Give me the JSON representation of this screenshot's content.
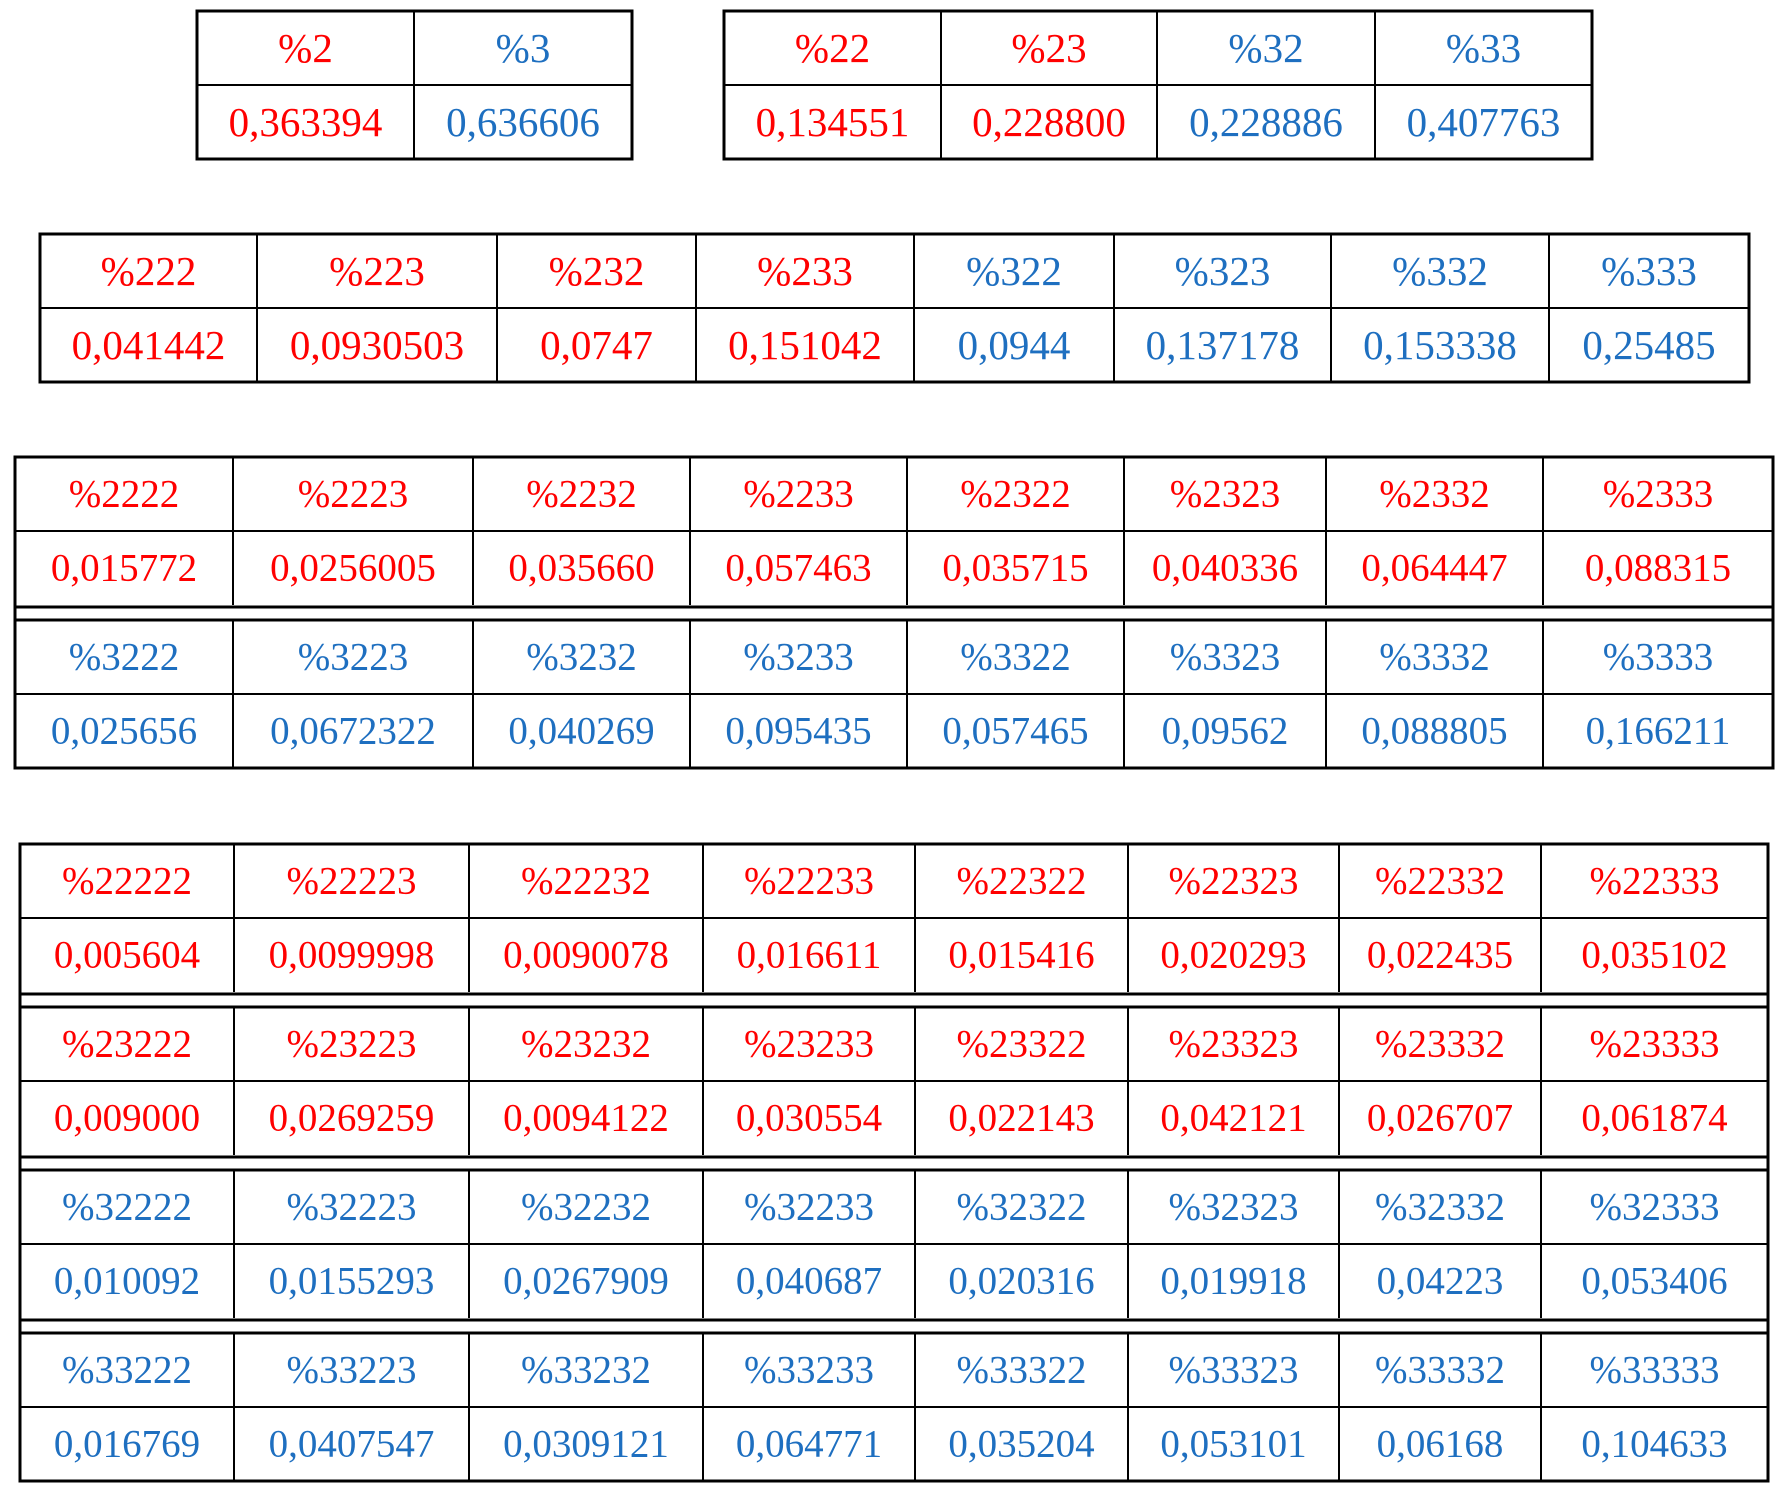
{
  "tables": [
    {
      "blocks": [
        {
          "labels": [
            "%2",
            "%3"
          ],
          "values": [
            "0,363394",
            "0,636606"
          ],
          "colors": [
            "#ff0000",
            "#1e6fc0"
          ]
        }
      ]
    },
    {
      "blocks": [
        {
          "labels": [
            "%22",
            "%23",
            "%32",
            "%33"
          ],
          "values": [
            "0,134551",
            "0,228800",
            "0,228886",
            "0,407763"
          ],
          "colors": [
            "#ff0000",
            "#ff0000",
            "#1e6fc0",
            "#1e6fc0"
          ]
        }
      ]
    },
    {
      "blocks": [
        {
          "labels": [
            "%222",
            "%223",
            "%232",
            "%233",
            "%322",
            "%323",
            "%332",
            "%333"
          ],
          "values": [
            "0,041442",
            "0,0930503",
            "0,0747",
            "0,151042",
            "0,0944",
            "0,137178",
            "0,153338",
            "0,25485"
          ],
          "colors": [
            "#ff0000",
            "#ff0000",
            "#ff0000",
            "#ff0000",
            "#1e6fc0",
            "#1e6fc0",
            "#1e6fc0",
            "#1e6fc0"
          ]
        }
      ]
    },
    {
      "blocks": [
        {
          "labels": [
            "%2222",
            "%2223",
            "%2232",
            "%2233",
            "%2322",
            "%2323",
            "%2332",
            "%2333"
          ],
          "values": [
            "0,015772",
            "0,0256005",
            "0,035660",
            "0,057463",
            "0,035715",
            "0,040336",
            "0,064447",
            "0,088315"
          ],
          "colors": [
            "#ff0000",
            "#ff0000",
            "#ff0000",
            "#ff0000",
            "#ff0000",
            "#ff0000",
            "#ff0000",
            "#ff0000"
          ]
        },
        {
          "labels": [
            "%3222",
            "%3223",
            "%3232",
            "%3233",
            "%3322",
            "%3323",
            "%3332",
            "%3333"
          ],
          "values": [
            "0,025656",
            "0,0672322",
            "0,040269",
            "0,095435",
            "0,057465",
            "0,09562",
            "0,088805",
            "0,166211"
          ],
          "colors": [
            "#1e6fc0",
            "#1e6fc0",
            "#1e6fc0",
            "#1e6fc0",
            "#1e6fc0",
            "#1e6fc0",
            "#1e6fc0",
            "#1e6fc0"
          ]
        }
      ]
    },
    {
      "blocks": [
        {
          "labels": [
            "%22222",
            "%22223",
            "%22232",
            "%22233",
            "%22322",
            "%22323",
            "%22332",
            "%22333"
          ],
          "values": [
            "0,005604",
            "0,0099998",
            "0,0090078",
            "0,016611",
            "0,015416",
            "0,020293",
            "0,022435",
            "0,035102"
          ],
          "colors": [
            "#ff0000",
            "#ff0000",
            "#ff0000",
            "#ff0000",
            "#ff0000",
            "#ff0000",
            "#ff0000",
            "#ff0000"
          ]
        },
        {
          "labels": [
            "%23222",
            "%23223",
            "%23232",
            "%23233",
            "%23322",
            "%23323",
            "%23332",
            "%23333"
          ],
          "values": [
            "0,009000",
            "0,0269259",
            "0,0094122",
            "0,030554",
            "0,022143",
            "0,042121",
            "0,026707",
            "0,061874"
          ],
          "colors": [
            "#ff0000",
            "#ff0000",
            "#ff0000",
            "#ff0000",
            "#ff0000",
            "#ff0000",
            "#ff0000",
            "#ff0000"
          ]
        },
        {
          "labels": [
            "%32222",
            "%32223",
            "%32232",
            "%32233",
            "%32322",
            "%32323",
            "%32332",
            "%32333"
          ],
          "values": [
            "0,010092",
            "0,0155293",
            "0,0267909",
            "0,040687",
            "0,020316",
            "0,019918",
            "0,04223",
            "0,053406"
          ],
          "colors": [
            "#1e6fc0",
            "#1e6fc0",
            "#1e6fc0",
            "#1e6fc0",
            "#1e6fc0",
            "#1e6fc0",
            "#1e6fc0",
            "#1e6fc0"
          ]
        },
        {
          "labels": [
            "%33222",
            "%33223",
            "%33232",
            "%33233",
            "%33322",
            "%33323",
            "%33332",
            "%33333"
          ],
          "values": [
            "0,016769",
            "0,0407547",
            "0,0309121",
            "0,064771",
            "0,035204",
            "0,053101",
            "0,06168",
            "0,104633"
          ],
          "colors": [
            "#1e6fc0",
            "#1e6fc0",
            "#1e6fc0",
            "#1e6fc0",
            "#1e6fc0",
            "#1e6fc0",
            "#1e6fc0",
            "#1e6fc0"
          ]
        }
      ]
    }
  ]
}
